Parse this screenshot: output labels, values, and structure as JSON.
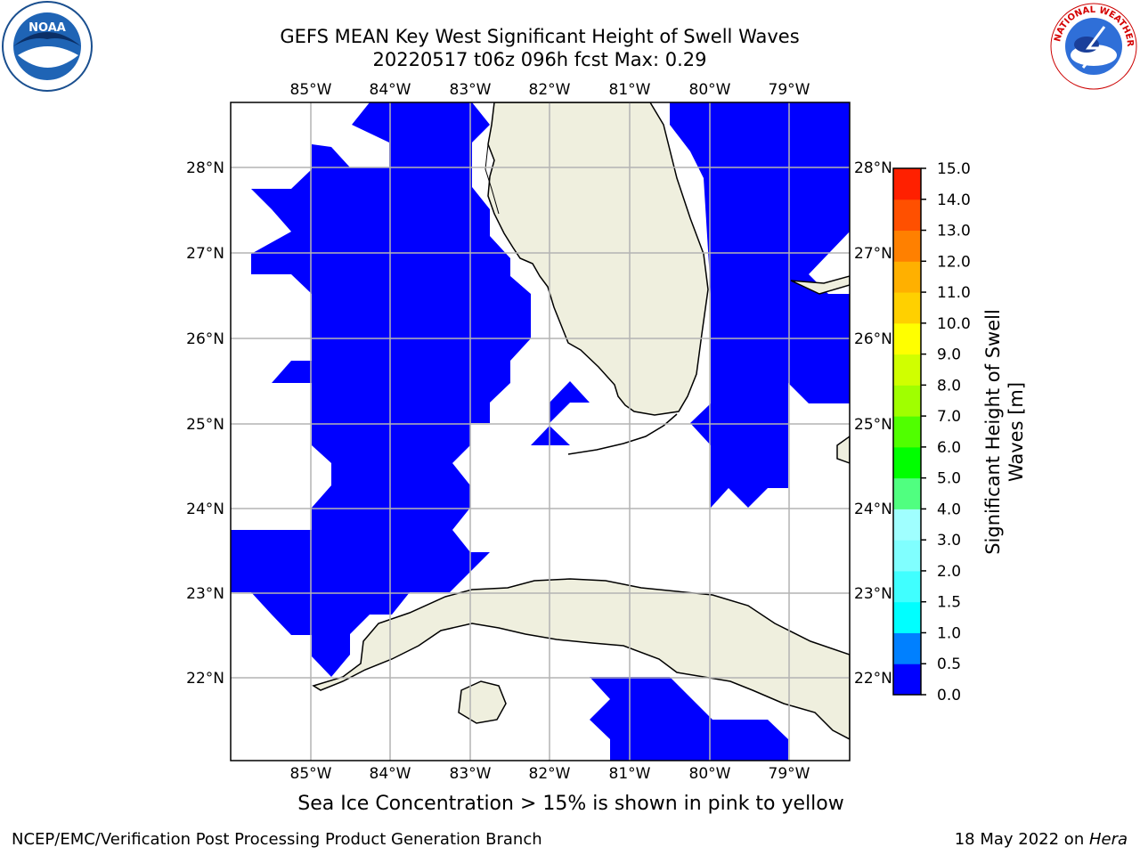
{
  "title": {
    "line1": "GEFS MEAN Key West Significant Height of Swell Waves",
    "line2": "20220517 t06z 096h fcst   Max: 0.29"
  },
  "caption": "Sea Ice Concentration > 15% is shown in pink to yellow",
  "footer": {
    "left": "NCEP/EMC/Verification Post Processing Product Generation Branch",
    "right_prefix": "18 May 2022 on ",
    "right_host": "Hera"
  },
  "logos": {
    "left": "noaa-logo",
    "right": "national-weather-service-logo",
    "left_text": "NOAA",
    "right_ring_text": "NATIONAL WEATHER SERVICE"
  },
  "map": {
    "lon_labels": [
      "85°W",
      "84°W",
      "83°W",
      "82°W",
      "81°W",
      "80°W",
      "79°W"
    ],
    "lat_labels": [
      "28°N",
      "27°N",
      "26°N",
      "25°N",
      "24°N",
      "23°N",
      "22°N"
    ],
    "lon_range": [
      -86,
      -78.3
    ],
    "lat_range": [
      21.0,
      28.75
    ],
    "land_color": "#efefde",
    "swell_color": "#0000ff",
    "grid_color": "#b4b4b4"
  },
  "colorbar": {
    "label": "Significant Height of Swell Waves [m]",
    "label_line1": "Significant Height of Swell",
    "label_line2": "Waves [m]",
    "ticks": [
      "0.0",
      "0.5",
      "1.0",
      "1.5",
      "2.0",
      "3.0",
      "4.0",
      "5.0",
      "6.0",
      "7.0",
      "8.0",
      "9.0",
      "10.0",
      "11.0",
      "12.0",
      "13.0",
      "14.0",
      "15.0"
    ],
    "colors": [
      "#0000ff",
      "#0080ff",
      "#00ffff",
      "#40ffff",
      "#80ffff",
      "#a0ffff",
      "#50ff80",
      "#00ff00",
      "#50ff00",
      "#a0ff00",
      "#d0ff00",
      "#ffff00",
      "#ffd000",
      "#ffb000",
      "#ff8000",
      "#ff5000",
      "#ff2000"
    ]
  }
}
